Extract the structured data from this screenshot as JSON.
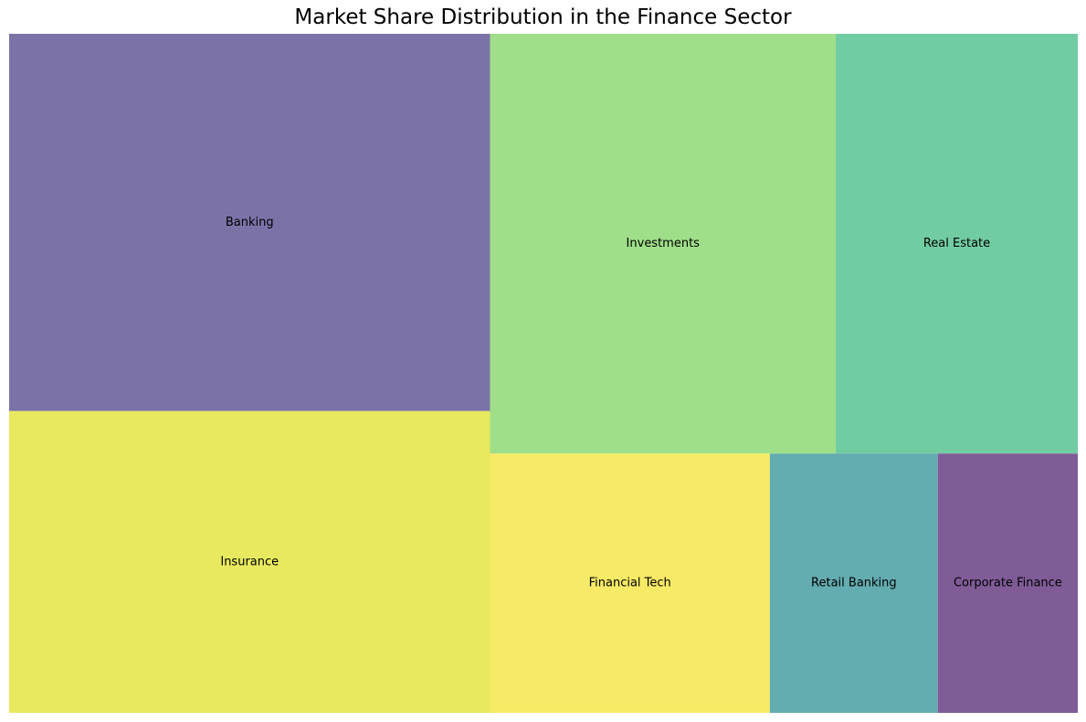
{
  "chart_data": {
    "type": "treemap",
    "title": "Market Share Distribution in the Finance Sector",
    "categories": [
      "Banking",
      "Insurance",
      "Investments",
      "Real Estate",
      "Financial Tech",
      "Retail Banking",
      "Corporate Finance"
    ],
    "values": [
      25,
      20,
      20,
      14,
      10,
      6,
      5
    ],
    "colors": [
      "#7b73a8",
      "#e8e95e",
      "#a0df89",
      "#71cca2",
      "#f7ea66",
      "#63acb0",
      "#7f5c97"
    ],
    "alpha": 0.7,
    "grid": false,
    "axes": false
  }
}
